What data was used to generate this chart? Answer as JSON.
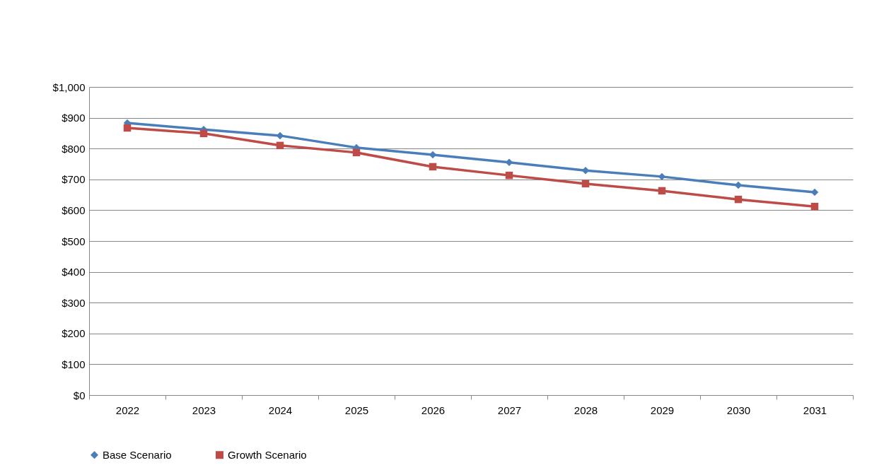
{
  "chart_data": {
    "type": "line",
    "categories": [
      "2022",
      "2023",
      "2024",
      "2025",
      "2026",
      "2027",
      "2028",
      "2029",
      "2030",
      "2031"
    ],
    "series": [
      {
        "name": "Base Scenario",
        "color": "#4a7ebb",
        "marker": "diamond",
        "values": [
          883,
          862,
          842,
          803,
          780,
          755,
          729,
          709,
          681,
          658
        ]
      },
      {
        "name": "Growth Scenario",
        "color": "#be4b48",
        "marker": "square",
        "values": [
          867,
          849,
          810,
          787,
          741,
          713,
          686,
          663,
          635,
          612
        ]
      }
    ],
    "ylim": [
      0,
      1000
    ],
    "yticks": [
      {
        "value": 0,
        "label": "$0"
      },
      {
        "value": 100,
        "label": "$100"
      },
      {
        "value": 200,
        "label": "$200"
      },
      {
        "value": 300,
        "label": "$300"
      },
      {
        "value": 400,
        "label": "$400"
      },
      {
        "value": 500,
        "label": "$500"
      },
      {
        "value": 600,
        "label": "$600"
      },
      {
        "value": 700,
        "label": "$700"
      },
      {
        "value": 800,
        "label": "$800"
      },
      {
        "value": 900,
        "label": "$900"
      },
      {
        "value": 1000,
        "label": "$1,000"
      }
    ],
    "grid": "y",
    "legend": "bottom",
    "line_style": "solid"
  }
}
